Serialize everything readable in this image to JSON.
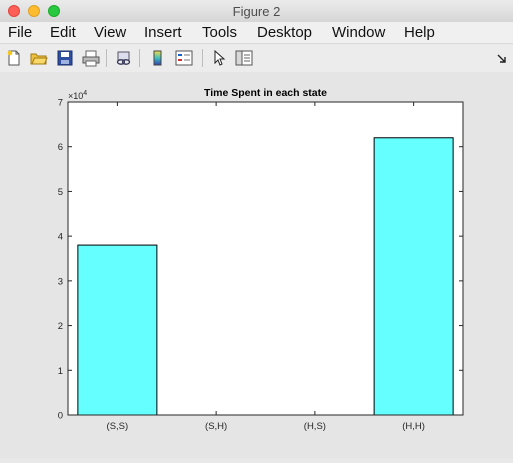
{
  "window": {
    "title": "Figure 2"
  },
  "menu": {
    "items": [
      "File",
      "Edit",
      "View",
      "Insert",
      "Tools",
      "Desktop",
      "Window",
      "Help"
    ]
  },
  "toolbar": {
    "icons": [
      "new-figure-icon",
      "open-file-icon",
      "save-icon",
      "print-icon",
      "link-icon",
      "colorbar-icon",
      "legend-icon",
      "pointer-icon",
      "property-inspector-icon",
      "dock-arrow-icon"
    ]
  },
  "chart_data": {
    "type": "bar",
    "title": "Time Spent in each state",
    "categories": [
      "(S,S)",
      "(S,H)",
      "(H,S)",
      "(H,H)"
    ],
    "values": [
      38000,
      0,
      0,
      62000
    ],
    "ylim": [
      0,
      70000
    ],
    "yticks": [
      "0",
      "1",
      "2",
      "3",
      "4",
      "5",
      "6",
      "7"
    ],
    "y_multiplier": "×10",
    "y_multiplier_exp": "4",
    "bar_color": "#66ffff",
    "xlabel": "",
    "ylabel": ""
  }
}
